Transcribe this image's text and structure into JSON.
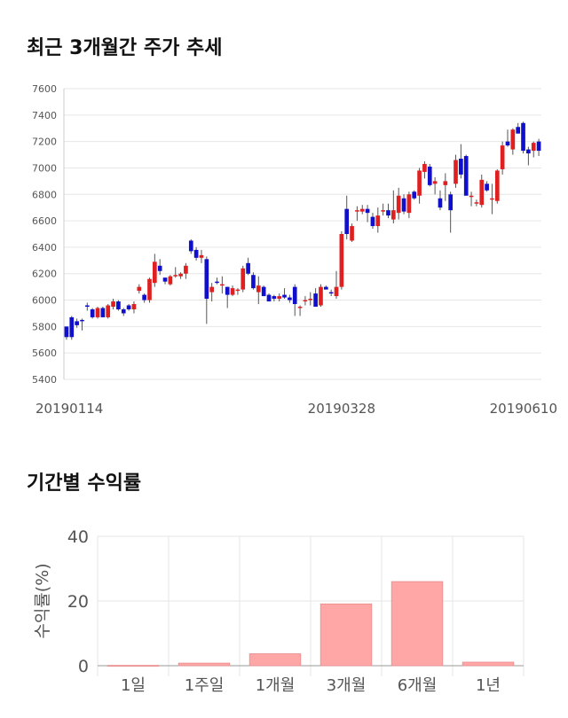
{
  "page": {
    "title_price": "최근 3개월간 주가 추세",
    "title_returns": "기간별 수익률"
  },
  "colors": {
    "up": "#e02020",
    "down": "#1010cc",
    "bar": "#ffa7a7",
    "bar_border": "#e88c8c",
    "grid": "#e6e6e6"
  },
  "chart_data": [
    {
      "type": "candlestick",
      "ylim": [
        5400,
        7600
      ],
      "yticks": [
        "7600",
        "7400",
        "7200",
        "7000",
        "6800",
        "6600",
        "6400",
        "6200",
        "6000",
        "5800",
        "5600",
        "5400"
      ],
      "xtick_labels": [
        "20190114",
        "20190328",
        "20190610"
      ],
      "xtick_index": [
        0,
        53,
        105
      ],
      "candles": [
        [
          5800,
          5700,
          5720,
          5800
        ],
        [
          5870,
          5700,
          5720,
          5880
        ],
        [
          5840,
          5790,
          5810,
          5860
        ],
        [
          5850,
          5770,
          5840,
          5860
        ],
        [
          5960,
          5920,
          5950,
          5980
        ],
        [
          5930,
          5860,
          5870,
          5940
        ],
        [
          5870,
          5860,
          5940,
          5950
        ],
        [
          5940,
          5870,
          5870,
          5950
        ],
        [
          5870,
          5860,
          5960,
          5970
        ],
        [
          5950,
          5930,
          5990,
          6010
        ],
        [
          5990,
          5920,
          5930,
          6000
        ],
        [
          5930,
          5880,
          5900,
          5940
        ],
        [
          5960,
          5920,
          5930,
          5970
        ],
        [
          5930,
          5900,
          5970,
          5990
        ],
        [
          6070,
          6050,
          6100,
          6120
        ],
        [
          6040,
          5980,
          6000,
          6050
        ],
        [
          6000,
          5980,
          6160,
          6170
        ],
        [
          6130,
          6100,
          6290,
          6350
        ],
        [
          6260,
          6190,
          6220,
          6310
        ],
        [
          6170,
          6120,
          6140,
          6170
        ],
        [
          6120,
          6110,
          6180,
          6190
        ],
        [
          6180,
          6170,
          6190,
          6250
        ],
        [
          6180,
          6160,
          6200,
          6210
        ],
        [
          6200,
          6160,
          6260,
          6280
        ],
        [
          6450,
          6350,
          6370,
          6460
        ],
        [
          6380,
          6300,
          6320,
          6400
        ],
        [
          6320,
          6280,
          6340,
          6380
        ],
        [
          6310,
          5820,
          6010,
          6330
        ],
        [
          6060,
          5990,
          6100,
          6130
        ],
        [
          6140,
          6120,
          6130,
          6170
        ],
        [
          6110,
          6050,
          6120,
          6180
        ],
        [
          6100,
          5940,
          6040,
          6100
        ],
        [
          6040,
          6030,
          6090,
          6110
        ],
        [
          6070,
          6040,
          6080,
          6090
        ],
        [
          6080,
          6060,
          6240,
          6260
        ],
        [
          6280,
          6190,
          6200,
          6320
        ],
        [
          6190,
          6080,
          6090,
          6210
        ],
        [
          6060,
          5970,
          6110,
          6180
        ],
        [
          6100,
          6050,
          6030,
          6110
        ],
        [
          6040,
          5990,
          5990,
          6050
        ],
        [
          6030,
          5990,
          6010,
          6040
        ],
        [
          6010,
          5990,
          6030,
          6050
        ],
        [
          6040,
          6010,
          6020,
          6090
        ],
        [
          6020,
          5980,
          6000,
          6040
        ],
        [
          6100,
          5880,
          5970,
          6120
        ],
        [
          5950,
          5880,
          5950,
          5960
        ],
        [
          5990,
          5960,
          6000,
          6030
        ],
        [
          6010,
          5960,
          6010,
          6060
        ],
        [
          6050,
          5950,
          5950,
          6090
        ],
        [
          5960,
          5950,
          6100,
          6120
        ],
        [
          6100,
          6090,
          6080,
          6110
        ],
        [
          6060,
          6030,
          6050,
          6080
        ],
        [
          6030,
          6010,
          6100,
          6220
        ],
        [
          6100,
          6080,
          6500,
          6520
        ],
        [
          6690,
          6460,
          6500,
          6790
        ],
        [
          6450,
          6440,
          6560,
          6580
        ],
        [
          6680,
          6600,
          6680,
          6710
        ],
        [
          6670,
          6650,
          6690,
          6720
        ],
        [
          6690,
          6590,
          6660,
          6720
        ],
        [
          6630,
          6540,
          6560,
          6660
        ],
        [
          6560,
          6510,
          6640,
          6700
        ],
        [
          6680,
          6640,
          6680,
          6730
        ],
        [
          6680,
          6620,
          6640,
          6730
        ],
        [
          6610,
          6580,
          6680,
          6830
        ],
        [
          6660,
          6610,
          6790,
          6850
        ],
        [
          6770,
          6650,
          6670,
          6800
        ],
        [
          6660,
          6620,
          6800,
          6820
        ],
        [
          6820,
          6760,
          6770,
          6830
        ],
        [
          6790,
          6730,
          6980,
          7000
        ],
        [
          6970,
          6920,
          7030,
          7050
        ],
        [
          7010,
          6860,
          6870,
          7030
        ],
        [
          6880,
          6800,
          6900,
          6930
        ],
        [
          6770,
          6680,
          6700,
          6830
        ],
        [
          6870,
          6750,
          6900,
          6960
        ],
        [
          6800,
          6510,
          6680,
          6820
        ],
        [
          6880,
          6850,
          7060,
          7100
        ],
        [
          7070,
          6920,
          6950,
          7180
        ],
        [
          7090,
          6970,
          6790,
          7100
        ],
        [
          6780,
          6710,
          6790,
          6820
        ],
        [
          6730,
          6710,
          6740,
          6760
        ],
        [
          6720,
          6700,
          6910,
          6950
        ],
        [
          6880,
          6820,
          6830,
          6900
        ],
        [
          6760,
          6650,
          6770,
          6880
        ],
        [
          6750,
          6730,
          6980,
          6990
        ],
        [
          6990,
          6950,
          7170,
          7200
        ],
        [
          7200,
          7160,
          7170,
          7290
        ],
        [
          7140,
          7100,
          7290,
          7300
        ],
        [
          7310,
          7270,
          7260,
          7340
        ],
        [
          7340,
          7110,
          7130,
          7350
        ],
        [
          7140,
          7020,
          7110,
          7160
        ],
        [
          7130,
          7080,
          7190,
          7200
        ],
        [
          7200,
          7090,
          7130,
          7220
        ]
      ]
    },
    {
      "type": "bar",
      "ylabel": "수익률(%)",
      "ylim": [
        0,
        40
      ],
      "yticks": [
        "40",
        "20",
        "0"
      ],
      "categories": [
        "1일",
        "1주일",
        "1개월",
        "3개월",
        "6개월",
        "1년"
      ],
      "values": [
        0.1,
        0.8,
        3.7,
        19.1,
        26.0,
        1.1
      ]
    }
  ]
}
